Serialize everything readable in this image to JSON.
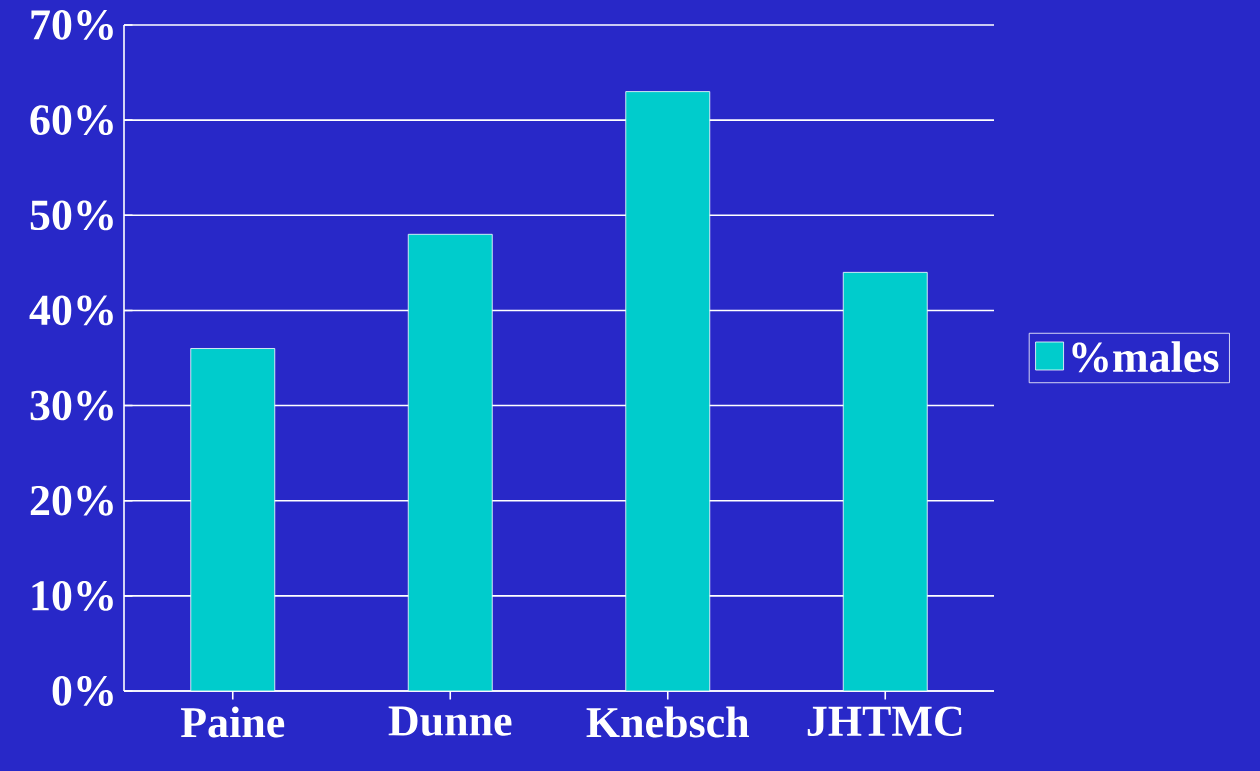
{
  "chart_data": {
    "type": "bar",
    "categories": [
      "Paine",
      "Dunne",
      "Knebsch",
      "JHTMC"
    ],
    "series": [
      {
        "name": "%males",
        "color": "#00cccc",
        "values": [
          36,
          48,
          63,
          44
        ]
      }
    ],
    "ylim": [
      0,
      70
    ],
    "yticks": [
      {
        "value": 0,
        "label": "0%"
      },
      {
        "value": 10,
        "label": "10%"
      },
      {
        "value": 20,
        "label": "20%"
      },
      {
        "value": 30,
        "label": "30%"
      },
      {
        "value": 40,
        "label": "40%"
      },
      {
        "value": 50,
        "label": "50%"
      },
      {
        "value": 60,
        "label": "60%"
      },
      {
        "value": 70,
        "label": "70%"
      }
    ],
    "grid": "y",
    "legend": "right"
  }
}
